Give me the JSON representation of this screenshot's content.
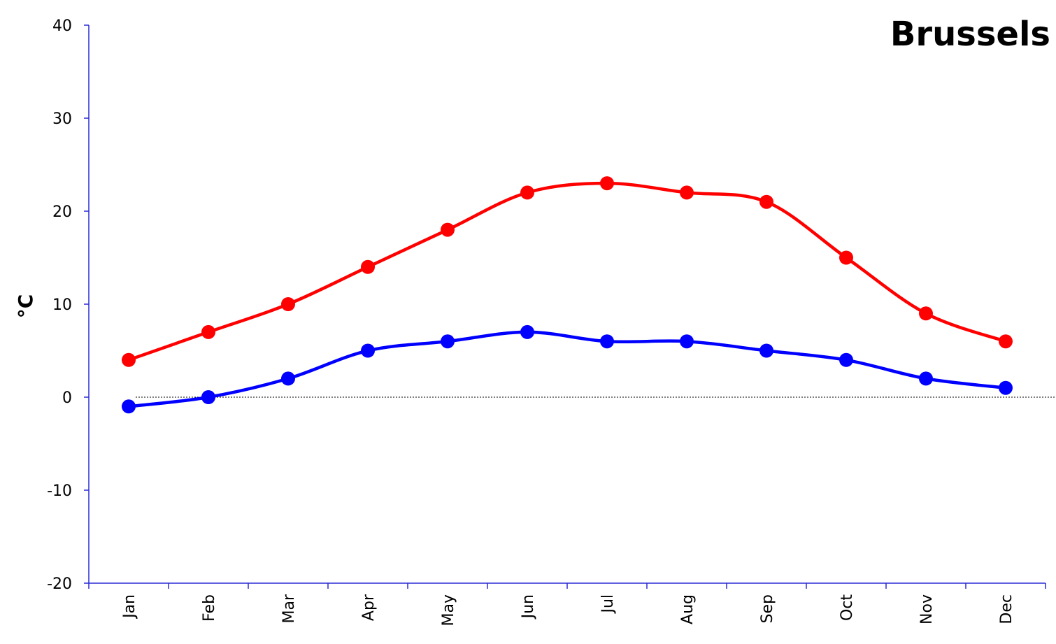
{
  "chart_data": {
    "type": "line",
    "title": "Brussels",
    "xlabel": "",
    "ylabel": "°C",
    "categories": [
      "Jan",
      "Feb",
      "Mar",
      "Apr",
      "May",
      "Jun",
      "Jul",
      "Aug",
      "Sep",
      "Oct",
      "Nov",
      "Dec"
    ],
    "ylim": [
      -20,
      40
    ],
    "yticks": [
      "-20",
      "-10",
      "0",
      "10",
      "20",
      "30",
      "40"
    ],
    "series": [
      {
        "values": [
          4,
          7,
          10,
          14,
          18,
          22,
          23,
          22,
          21,
          15,
          9,
          6
        ],
        "color": "#ff0000"
      },
      {
        "values": [
          -1,
          0,
          2,
          5,
          6,
          7,
          6,
          6,
          5,
          4,
          2,
          1
        ],
        "color": "#0000ff"
      }
    ],
    "zero_line": "dotted",
    "grid": false,
    "legend": "none"
  }
}
